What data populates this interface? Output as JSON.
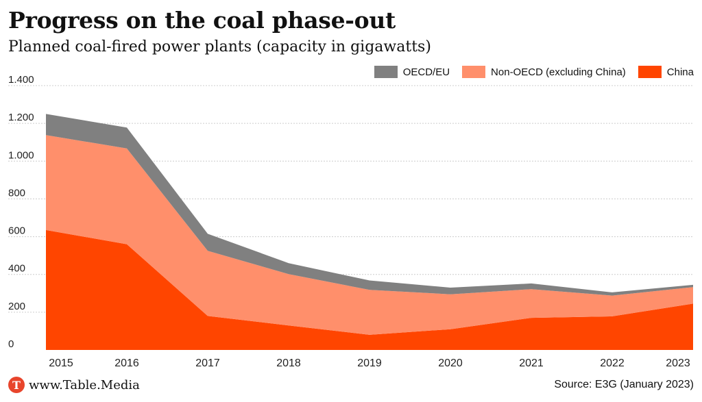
{
  "title": "Progress on the coal phase-out",
  "subtitle": "Planned coal-fired power plants (capacity in gigawatts)",
  "footer": {
    "site": "www.Table.Media",
    "logo_letter": "T",
    "source": "Source: E3G (January 2023)"
  },
  "colors": {
    "china": "#ff4500",
    "non_oecd": "#ff8f6b",
    "oecd": "#808080",
    "grid": "#cccccc",
    "logo": "#e8452c"
  },
  "chart_data": {
    "type": "area",
    "stacked": true,
    "title": "Progress on the coal phase-out",
    "subtitle": "Planned coal-fired power plants (capacity in gigawatts)",
    "x": [
      "2015",
      "2016",
      "2017",
      "2018",
      "2019",
      "2020",
      "2021",
      "2022",
      "2023"
    ],
    "ylim": [
      0,
      1400
    ],
    "yticks": [
      0,
      200,
      400,
      600,
      800,
      1000,
      1200,
      1400
    ],
    "ytick_labels": [
      "0",
      "200",
      "400",
      "600",
      "800",
      "1.000",
      "1.200",
      "1.400"
    ],
    "grid": true,
    "legend_position": "top-right",
    "legend_order": [
      "OECD/EU",
      "Non-OECD (excluding China)",
      "China"
    ],
    "series": [
      {
        "name": "China",
        "color": "#ff4500",
        "values": [
          635,
          560,
          180,
          130,
          80,
          110,
          170,
          178,
          245
        ]
      },
      {
        "name": "Non-OECD (excluding China)",
        "color": "#ff8f6b",
        "values": [
          503,
          507,
          345,
          272,
          238,
          185,
          152,
          110,
          88
        ]
      },
      {
        "name": "OECD/EU",
        "color": "#808080",
        "values": [
          112,
          111,
          90,
          58,
          50,
          35,
          30,
          17,
          12
        ]
      }
    ]
  }
}
